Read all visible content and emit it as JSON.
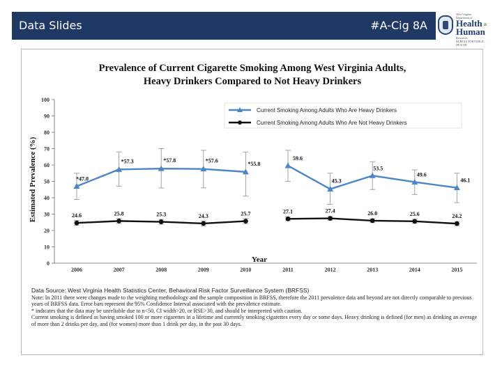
{
  "header": {
    "left_title": "Data Slides",
    "right_title": "#A-Cig 8A"
  },
  "logo": {
    "line1": "West Virginia",
    "line2": "Department of",
    "word1": "Health",
    "amp": "&",
    "word2": "Human",
    "line3": "Resources",
    "line4": "BUREAU FOR PUBLIC HEALTH"
  },
  "colors": {
    "header_bg": "#1f3864",
    "series_heavy": "#4a86c8",
    "series_not_heavy": "#111111",
    "errorbar": "#9a9a9a"
  },
  "chart_data": {
    "type": "line",
    "title_line1": "Prevalence of Current Cigarette Smoking Among West Virginia Adults,",
    "title_line2": "Heavy Drinkers Compared to Not Heavy Drinkers",
    "xlabel": "Year",
    "ylabel": "Estimated Prevalence (%)",
    "ylim": [
      0,
      100
    ],
    "yticks": [
      0,
      10,
      20,
      30,
      40,
      50,
      60,
      70,
      80,
      90,
      100
    ],
    "categories": [
      "2006",
      "2007",
      "2008",
      "2009",
      "2010",
      "2011",
      "2012",
      "2013",
      "2014",
      "2015"
    ],
    "grid": false,
    "legend_position": "top-right",
    "series": [
      {
        "name": "Current Smoking Among Adults Who Are Heavy Drinkers",
        "values": [
          47.0,
          57.3,
          57.8,
          57.6,
          55.8,
          59.6,
          45.3,
          53.5,
          49.6,
          46.1
        ],
        "labels": [
          "*47.0",
          "*57.3",
          "*57.8",
          "*57.6",
          "*55.8",
          "59.6",
          "45.3",
          "53.5",
          "49.6",
          "46.1"
        ],
        "ci_low": [
          39,
          47,
          46,
          46,
          41,
          50,
          36,
          45,
          42,
          37
        ],
        "ci_high": [
          55,
          68,
          70,
          69,
          68,
          69,
          55,
          62,
          57,
          55
        ],
        "segments": [
          [
            0,
            4
          ],
          [
            5,
            9
          ]
        ]
      },
      {
        "name": "Current Smoking Among Adults Who Are Not Heavy Drinkers",
        "values": [
          24.6,
          25.8,
          25.3,
          24.3,
          25.7,
          27.1,
          27.4,
          26.0,
          25.6,
          24.2
        ],
        "labels": [
          "24.6",
          "25.8",
          "25.3",
          "24.3",
          "25.7",
          "27.1",
          "27.4",
          "26.0",
          "25.6",
          "24.2"
        ],
        "ci_low": [
          23.1,
          24.3,
          23.8,
          22.8,
          24.1,
          26.0,
          26.2,
          24.8,
          24.3,
          22.9
        ],
        "ci_high": [
          26.1,
          27.3,
          26.8,
          25.8,
          27.3,
          28.2,
          28.6,
          27.2,
          26.9,
          25.5
        ],
        "segments": [
          [
            0,
            4
          ],
          [
            5,
            9
          ]
        ]
      }
    ]
  },
  "notes": {
    "source": "Data Source: West Virginia Health Statistics Center, Behavioral Risk Factor Surveillance System (BRFSS)",
    "note": "Note: In 2011 there were changes made to the weighting methodology and the sample composition in BRFSS, therefore the 2011 prevalence data and beyond are not directly comparable to previous years of BRFSS data. Error bars represent the 95% Confidence Interval associated with the prevalence estimate.",
    "asterisk": "* indicates that the data may be unreliable due to n<50, CI width>20, or RSE>30, and should be interpreted with caution.",
    "definition": "Current smoking is defined as having smoked 100 or more cigarettes in a lifetime and currently smoking cigarettes every day or some days. Heavy drinking is defined (for men) as drinking an average of more than 2 drinks per day, and (for women) more than 1 drink per day, in the past 30 days."
  }
}
